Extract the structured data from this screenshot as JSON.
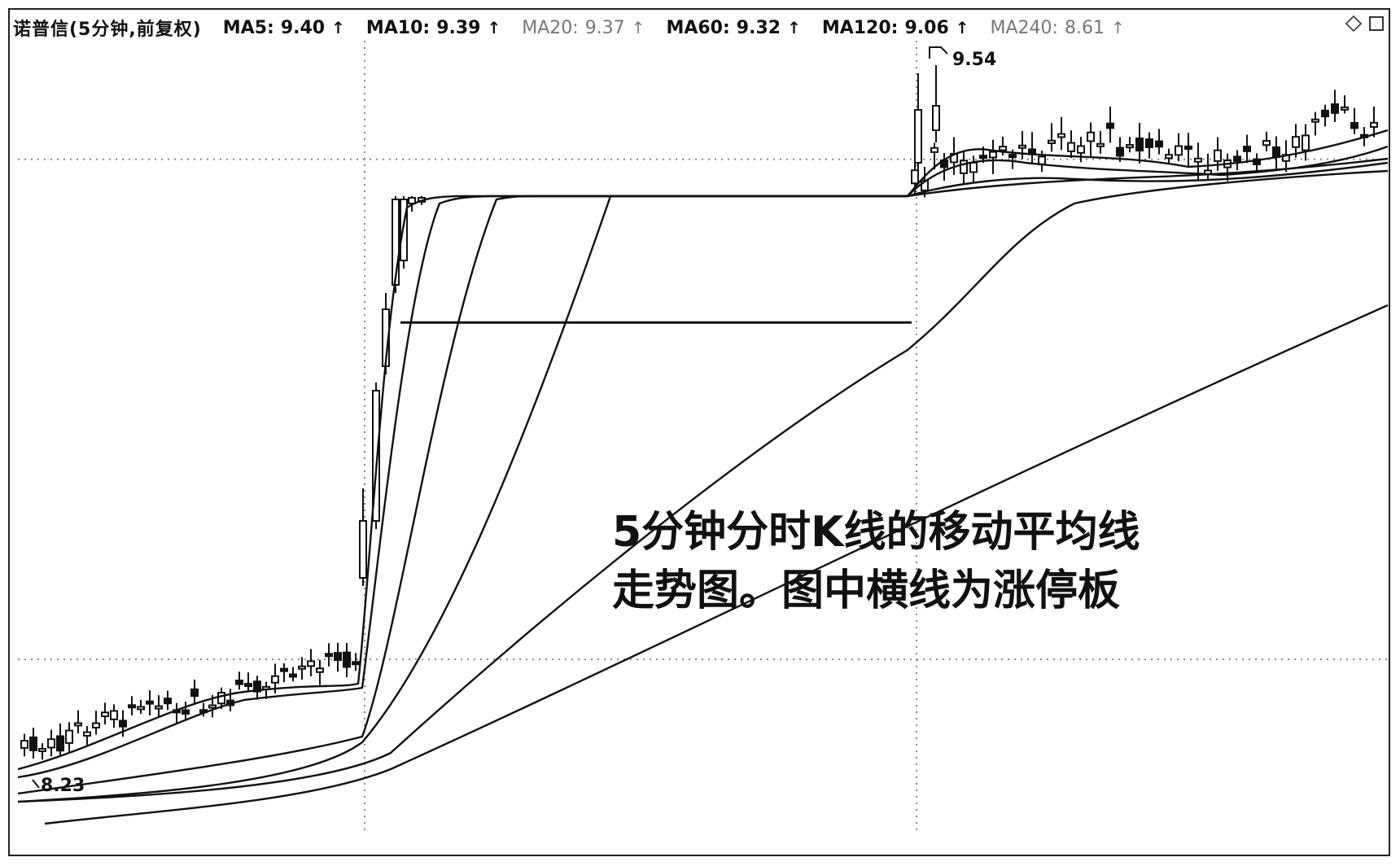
{
  "header": {
    "stock": "诺普信(5分钟,前复权)",
    "ma": [
      {
        "label": "MA5:",
        "value": "9.40"
      },
      {
        "label": "MA10:",
        "value": "9.39"
      },
      {
        "label": "MA20:",
        "value": "9.37"
      },
      {
        "label": "MA60:",
        "value": "9.32"
      },
      {
        "label": "MA120:",
        "value": "9.06"
      },
      {
        "label": "MA240:",
        "value": "8.61"
      }
    ],
    "arrow": "↑"
  },
  "chart_data": {
    "type": "candlestick",
    "price_high_label": "9.54",
    "price_low_label": "8.23",
    "ylim": [
      8.1,
      9.6
    ],
    "limit_up_price": 9.08,
    "grid": "dotted",
    "annotation_lines": [
      "5分钟分时K线的移动平均线",
      "走势图。图中横线为涨停板"
    ],
    "series": [
      {
        "name": "MA5",
        "value": 9.4
      },
      {
        "name": "MA10",
        "value": 9.39
      },
      {
        "name": "MA20",
        "value": 9.37
      },
      {
        "name": "MA60",
        "value": 9.32
      },
      {
        "name": "MA120",
        "value": 9.06
      },
      {
        "name": "MA240",
        "value": 8.61
      }
    ]
  }
}
